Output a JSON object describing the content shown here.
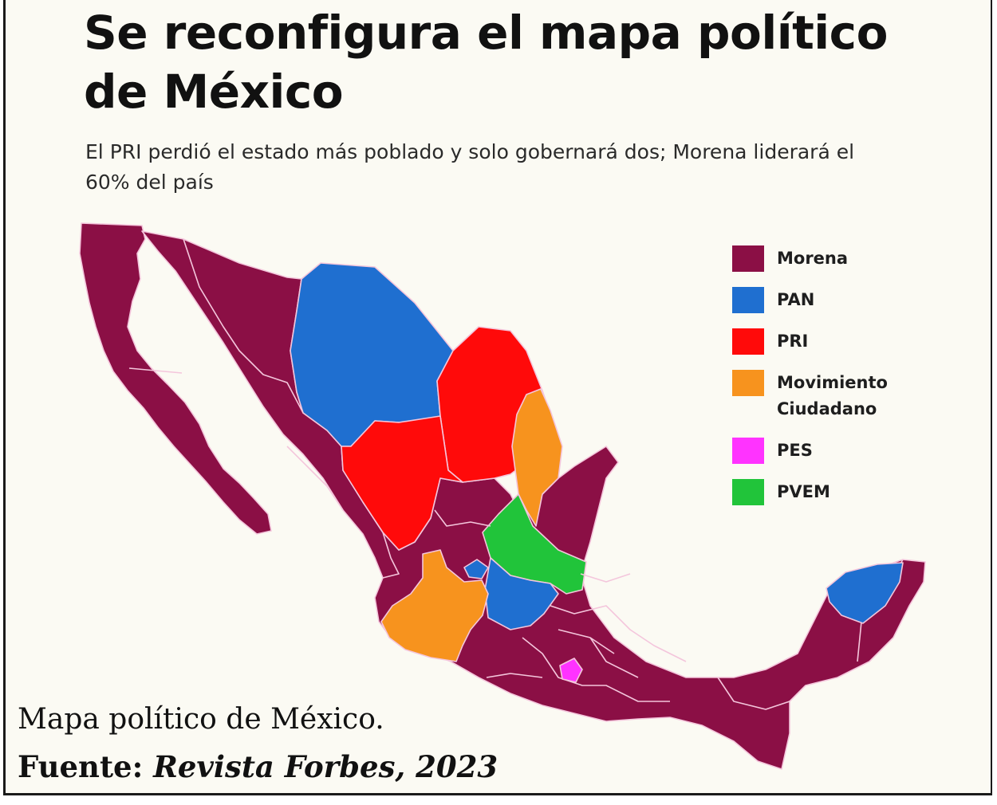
{
  "title": "Se reconfigura el mapa político de México",
  "subtitle": "El PRI perdió el estado más poblado y solo gobernará dos; Morena liderará el 60% del país",
  "legend": [
    {
      "party": "Morena",
      "color": "#8b0f45"
    },
    {
      "party": "PAN",
      "color": "#1f6fd0"
    },
    {
      "party": "PRI",
      "color": "#ff0a0a"
    },
    {
      "party": "Movimiento Ciudadano",
      "color": "#f7931e"
    },
    {
      "party": "PES",
      "color": "#ff33ff"
    },
    {
      "party": "PVEM",
      "color": "#21c43a"
    }
  ],
  "caption": "Mapa político de México.",
  "source": {
    "label": "Fuente:",
    "reference": "Revista Forbes, 2023"
  }
}
